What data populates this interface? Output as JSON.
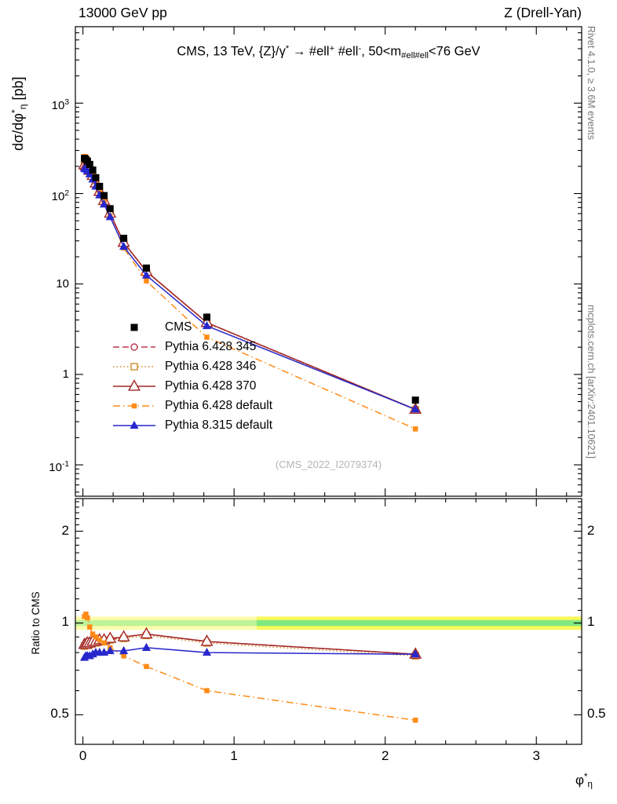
{
  "header": {
    "left": "13000 GeV pp",
    "right": "Z (Drell-Yan)"
  },
  "plot_title_parts": [
    {
      "t": "CMS, 13 TeV, {Z}/γ"
    },
    {
      "t": "*",
      "s": "sup"
    },
    {
      "t": " →  #ell"
    },
    {
      "t": "+",
      "s": "sup"
    },
    {
      "t": " #ell"
    },
    {
      "t": "-",
      "s": "sup"
    },
    {
      "t": ", 50<m"
    },
    {
      "t": "#ell#ell",
      "s": "sub"
    },
    {
      "t": "<76 GeV"
    }
  ],
  "axes": {
    "ylabel_main_parts": [
      {
        "t": "dσ/dφ"
      },
      {
        "t": "*",
        "s": "sup"
      },
      {
        "t": "η",
        "s": "sub"
      },
      {
        "t": " [pb]"
      }
    ],
    "ylabel_ratio": "Ratio to CMS",
    "xlabel_parts": [
      {
        "t": "φ"
      },
      {
        "t": "*",
        "s": "sup"
      },
      {
        "t": "η",
        "s": "sub"
      }
    ],
    "x_tick_values": [
      0,
      1,
      2,
      3
    ],
    "x_tick_labels": [
      "0",
      "1",
      "2",
      "3"
    ],
    "y_main_decades": [
      -1,
      0,
      1,
      2,
      3
    ],
    "y_ratio_tick_values": [
      0.5,
      1,
      2
    ],
    "y_ratio_tick_labels": [
      "0.5",
      "1",
      "2"
    ]
  },
  "side_notes": {
    "top_right": "Rivet 4.1.0, ≥ 3.6M events",
    "bottom_right": "mcplots.cern.ch [arXiv:2401.10621]"
  },
  "watermark": "(CMS_2022_I2079374)",
  "chart_data": {
    "type": "line",
    "x_range": [
      -0.05,
      3.3
    ],
    "y_range_main": [
      0.045,
      7000
    ],
    "y_range_ratio": [
      0.4,
      2.56
    ],
    "x": [
      0.01,
      0.02,
      0.03,
      0.045,
      0.065,
      0.085,
      0.11,
      0.14,
      0.18,
      0.27,
      0.42,
      0.82,
      2.2
    ],
    "cms": {
      "label": "CMS",
      "color": "#000000",
      "marker": "square-filled",
      "msize": 9,
      "values": [
        245,
        238,
        228,
        210,
        182,
        150,
        120,
        95,
        68,
        32,
        15,
        4.3,
        0.52
      ]
    },
    "series": [
      {
        "label": "Pythia 6.428 345",
        "color": "#bc3a4f",
        "marker": "circle-open",
        "msize": 8,
        "line": "dash",
        "ratio_to_cms": [
          0.84,
          0.85,
          0.85,
          0.86,
          0.86,
          0.87,
          0.87,
          0.88,
          0.88,
          0.9,
          0.92,
          0.87,
          0.79
        ]
      },
      {
        "label": "Pythia 6.428 346",
        "color": "#cf8a2d",
        "marker": "square-open",
        "msize": 8,
        "line": "dot",
        "ratio_to_cms": [
          0.84,
          0.85,
          0.85,
          0.85,
          0.86,
          0.86,
          0.87,
          0.87,
          0.88,
          0.89,
          0.91,
          0.86,
          0.78
        ]
      },
      {
        "label": "Pythia 6.428 370",
        "color": "#a22626",
        "marker": "triangle-open",
        "msize": 11,
        "line": "solid",
        "ratio_to_cms": [
          0.85,
          0.85,
          0.86,
          0.86,
          0.87,
          0.87,
          0.88,
          0.88,
          0.89,
          0.9,
          0.92,
          0.87,
          0.79
        ]
      },
      {
        "label": "Pythia 6.428 default",
        "color": "#ff8b17",
        "marker": "square-filled",
        "msize": 6.5,
        "line": "dashdot",
        "ratio_to_cms": [
          1.05,
          1.07,
          1.04,
          0.97,
          0.92,
          0.9,
          0.88,
          0.86,
          0.83,
          0.78,
          0.72,
          0.6,
          0.48
        ]
      },
      {
        "label": "Pythia 8.315 default",
        "color": "#2727cc",
        "marker": "triangle-filled",
        "msize": 9,
        "line": "solid",
        "ratio_to_cms": [
          0.77,
          0.78,
          0.78,
          0.78,
          0.79,
          0.8,
          0.8,
          0.8,
          0.81,
          0.81,
          0.83,
          0.8,
          0.79
        ]
      }
    ],
    "band": {
      "center": 1.0,
      "yellow_halfwidth": 0.05,
      "green_halfwidth": 0.022,
      "split_x": 1.15,
      "yellow_color": "#f9f95c",
      "green_color": "#7fe87f"
    }
  }
}
